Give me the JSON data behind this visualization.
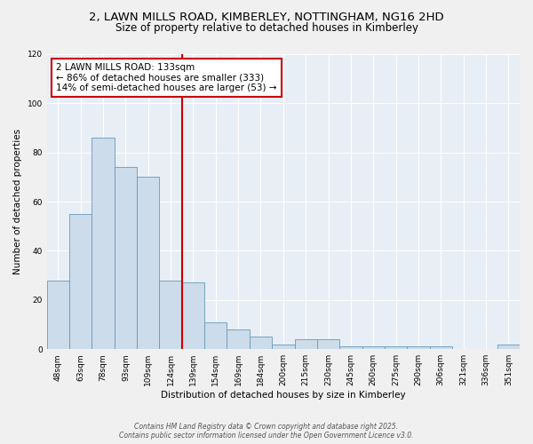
{
  "title_line1": "2, LAWN MILLS ROAD, KIMBERLEY, NOTTINGHAM, NG16 2HD",
  "title_line2": "Size of property relative to detached houses in Kimberley",
  "xlabel": "Distribution of detached houses by size in Kimberley",
  "ylabel": "Number of detached properties",
  "categories": [
    "48sqm",
    "63sqm",
    "78sqm",
    "93sqm",
    "109sqm",
    "124sqm",
    "139sqm",
    "154sqm",
    "169sqm",
    "184sqm",
    "200sqm",
    "215sqm",
    "230sqm",
    "245sqm",
    "260sqm",
    "275sqm",
    "290sqm",
    "306sqm",
    "321sqm",
    "336sqm",
    "351sqm"
  ],
  "bar_heights": [
    28,
    55,
    86,
    74,
    70,
    28,
    27,
    11,
    8,
    5,
    2,
    4,
    4,
    1,
    1,
    1,
    1,
    1,
    0,
    0,
    2
  ],
  "bar_color": "#ccdcea",
  "bar_edge_color": "#6699bb",
  "ref_line_color": "#cc0000",
  "annotation_box_color": "#ffffff",
  "annotation_box_edge_color": "#cc0000",
  "ylim": [
    0,
    120
  ],
  "yticks": [
    0,
    20,
    40,
    60,
    80,
    100,
    120
  ],
  "plot_bg_color": "#e8eef5",
  "fig_bg_color": "#f0f0f0",
  "grid_color": "#ffffff",
  "title_fontsize": 9.5,
  "subtitle_fontsize": 8.5,
  "axis_label_fontsize": 7.5,
  "tick_fontsize": 6.5,
  "annotation_fontsize": 7.5,
  "footer_fontsize": 5.5,
  "reference_line_label": "2 LAWN MILLS ROAD: 133sqm",
  "annotation_line1": "← 86% of detached houses are smaller (333)",
  "annotation_line2": "14% of semi-detached houses are larger (53) →",
  "footer_line1": "Contains HM Land Registry data © Crown copyright and database right 2025.",
  "footer_line2": "Contains public sector information licensed under the Open Government Licence v3.0."
}
